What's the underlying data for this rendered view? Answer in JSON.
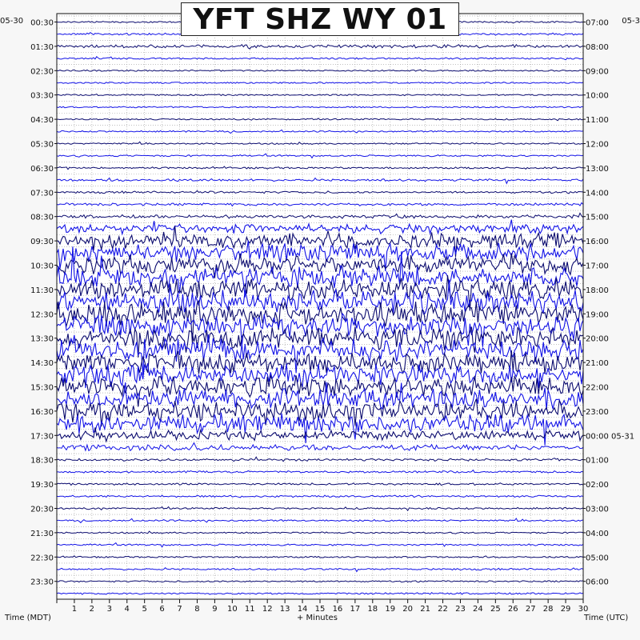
{
  "title": "YFT SHZ WY 01",
  "date_left": "05-30",
  "date_right": "05-3",
  "left_axis_title": "Time (MDT)",
  "right_axis_title": "Time (UTC)",
  "xlabel": "+ Minutes",
  "colors": {
    "dark": "#0a0a6e",
    "blue": "#1212e6",
    "frame": "#111111",
    "grid": "#9a9a9a"
  },
  "chart_data": {
    "type": "line",
    "title": "YFT SHZ WY 01",
    "xlabel": "+ Minutes",
    "xlim": [
      0,
      30
    ],
    "x_ticks": [
      "1",
      "2",
      "3",
      "4",
      "5",
      "6",
      "7",
      "8",
      "9",
      "10",
      "11",
      "12",
      "13",
      "14",
      "15",
      "16",
      "17",
      "18",
      "19",
      "20",
      "21",
      "22",
      "23",
      "24",
      "25",
      "26",
      "27",
      "28",
      "29",
      "30"
    ],
    "left_labels": [
      "00:30",
      "01:30",
      "02:30",
      "03:30",
      "04:30",
      "05:30",
      "06:30",
      "07:30",
      "08:30",
      "09:30",
      "10:30",
      "11:30",
      "12:30",
      "13:30",
      "14:30",
      "15:30",
      "16:30",
      "17:30",
      "18:30",
      "19:30",
      "20:30",
      "21:30",
      "22:30",
      "23:30"
    ],
    "right_labels": [
      "07:00",
      "08:00",
      "09:00",
      "10:00",
      "11:00",
      "12:00",
      "13:00",
      "14:00",
      "15:00",
      "16:00",
      "17:00",
      "18:00",
      "19:00",
      "20:00",
      "21:00",
      "22:00",
      "23:00",
      "00:00 05-31",
      "01:00",
      "02:00",
      "03:00",
      "04:00",
      "05:00",
      "06:00"
    ],
    "trace_count": 48,
    "trace_colors_alternate": [
      "dark",
      "blue"
    ],
    "trace_activity": [
      0.08,
      0.12,
      0.18,
      0.1,
      0.06,
      0.06,
      0.06,
      0.07,
      0.06,
      0.08,
      0.08,
      0.1,
      0.1,
      0.14,
      0.12,
      0.16,
      0.2,
      0.55,
      0.9,
      1.0,
      1.1,
      1.2,
      1.25,
      1.3,
      1.35,
      1.3,
      1.25,
      1.3,
      1.25,
      1.2,
      1.2,
      1.2,
      1.15,
      1.1,
      0.55,
      0.35,
      0.14,
      0.12,
      0.12,
      0.12,
      0.1,
      0.1,
      0.08,
      0.1,
      0.08,
      0.1,
      0.08,
      0.1
    ]
  }
}
